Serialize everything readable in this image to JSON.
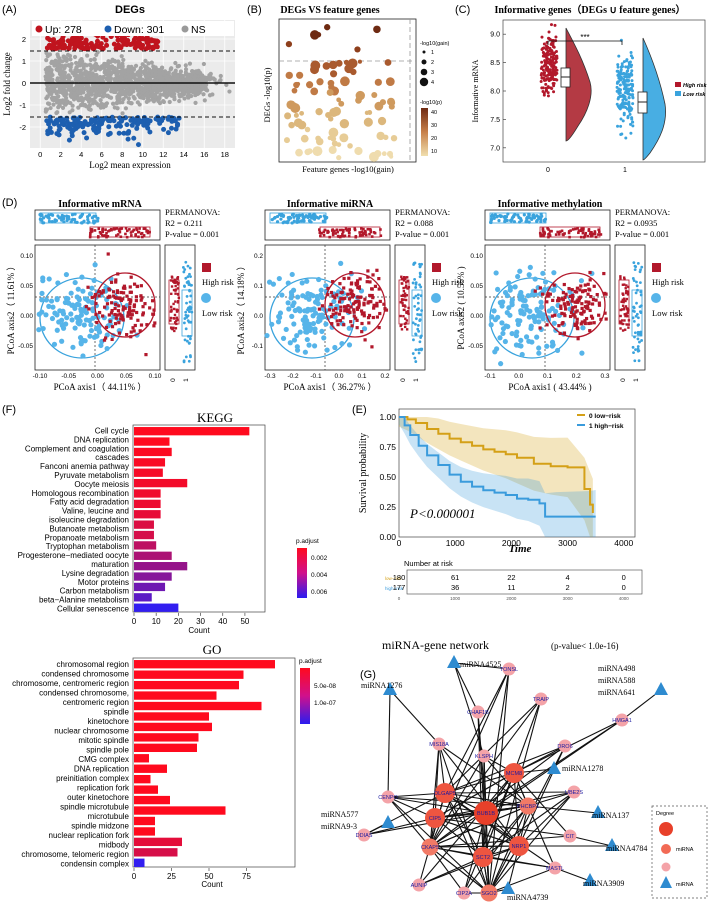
{
  "figure": {
    "panel_labels": [
      "(A)",
      "(B)",
      "(C)",
      "(D)",
      "(E)",
      "(F)",
      "(G)"
    ]
  },
  "colors": {
    "up": "#c0141e",
    "down": "#1d5fb0",
    "ns": "#9a9a9a",
    "high_risk": "#b2182b",
    "low_risk": "#3aa3dd",
    "km_low": "#d4a017",
    "km_high": "#3a9bdc",
    "mirna": "#2e8bd0",
    "gene_big": "#e8402a",
    "gene_mid": "#f26a55",
    "gene_small": "#f4a3a8"
  },
  "chart_data": [
    {
      "id": "A",
      "type": "scatter",
      "title": "DEGs",
      "xlabel": "Log2 mean expression",
      "ylabel": "Log2 fold change",
      "xticks": [
        "0",
        "2",
        "4",
        "6",
        "8",
        "10",
        "12",
        "14",
        "16",
        "18"
      ],
      "yticks": [
        "2",
        "1",
        "0",
        "-1",
        "-2"
      ],
      "legend": [
        {
          "label": "Up: 278",
          "color": "#c0141e"
        },
        {
          "label": "Down: 301",
          "color": "#1d5fb0"
        },
        {
          "label": "NS",
          "color": "#9a9a9a"
        }
      ],
      "up_count": 278,
      "down_count": 301,
      "thresholds": [
        1.5,
        -1.5
      ]
    },
    {
      "id": "B",
      "type": "scatter",
      "title": "DEGs VS feature genes",
      "xlabel": "Feature genes  -log10(gain)",
      "ylabel": "DEGs -log10(p)",
      "legend_size_title": "-log10(gain)",
      "legend_size_labels": [
        "1",
        "2",
        "3",
        "4"
      ],
      "legend_color_title": "-log10(p)",
      "legend_color_labels": [
        "40",
        "30",
        "20",
        "10"
      ]
    },
    {
      "id": "C",
      "type": "violin",
      "title": "Informative genes（DEGs ∪ feature genes）",
      "ylabel": "Informative mRNA",
      "categories": [
        "0",
        "1"
      ],
      "yticks": [
        "9.0",
        "8.5",
        "8.0",
        "7.5",
        "7.0"
      ],
      "medians": [
        8.45,
        8.05
      ],
      "significance": "***",
      "legend": [
        {
          "label": "High risk",
          "color": "#b2182b"
        },
        {
          "label": "Low risk",
          "color": "#3aa3dd"
        }
      ]
    },
    {
      "id": "D1",
      "type": "scatter",
      "title": "Informative mRNA",
      "xlabel": "PCoA axis1（ 44.11% ）",
      "ylabel": "PCoA axis2（ 11.61% ）",
      "xticks": [
        "-0.10",
        "-0.05",
        "0.00",
        "0.05",
        "0.10"
      ],
      "yticks": [
        "0.10",
        "0.05",
        "0.00",
        "-0.05"
      ],
      "stats": [
        "PERMANOVA:",
        "R2 =  0.211",
        "P-value =  0.001"
      ],
      "legend": [
        "High risk",
        "Low risk"
      ],
      "box_ticks": [
        "0",
        "1"
      ]
    },
    {
      "id": "D2",
      "type": "scatter",
      "title": "Informative miRNA",
      "xlabel": "PCoA axis1（ 36.27% ）",
      "ylabel": "PCoA axis2（ 14.18% ）",
      "xticks": [
        "-0.3",
        "-0.2",
        "-0.1",
        "0.0",
        "0.1",
        "0.2"
      ],
      "yticks": [
        "0.2",
        "0.1",
        "0.0",
        "-0.1"
      ],
      "stats": [
        "PERMANOVA:",
        "R2 =  0.088",
        "P-value =  0.001"
      ],
      "legend": [
        "High risk",
        "Low risk"
      ],
      "box_ticks": [
        "0",
        "1"
      ]
    },
    {
      "id": "D3",
      "type": "scatter",
      "title": "Informative methylation",
      "xlabel": "PCoA axis1 ( 43.44% )",
      "ylabel": "PCoA axis2 ( 10.55% )",
      "xticks": [
        "-0.1",
        "0.0",
        "0.1",
        "0.2",
        "0.3"
      ],
      "yticks": [
        "0.10",
        "0.05",
        "0.00",
        "-0.05"
      ],
      "stats": [
        "PERMANOVA:",
        "R2 =  0.0935",
        "P-value =  0.001"
      ],
      "legend": [
        "High risk",
        "Low risk"
      ],
      "box_ticks": [
        "0",
        "1"
      ]
    },
    {
      "id": "F1",
      "type": "bar",
      "orientation": "horizontal",
      "title": "KEGG",
      "xlabel": "Count",
      "xticks": [
        "0",
        "10",
        "20",
        "30",
        "40",
        "50"
      ],
      "xlim": [
        0,
        55
      ],
      "categories": [
        "Cell cycle",
        "DNA replication",
        "Complement and coagulation",
        "cascades",
        "Fanconi anemia pathway",
        "Pyruvate metabolism",
        "Oocyte meiosis",
        "Homologous recombination",
        "Fatty acid degradation",
        "Valine, leucine and",
        "isoleucine degradation",
        "Butanoate metabolism",
        "Propanoate metabolism",
        "Tryptophan metabolism",
        "Progesterone−mediated oocyte",
        "maturation",
        "Lysine degradation",
        "Motor proteins",
        "Carbon metabolism",
        "beta−Alanine metabolism",
        "Cellular senescence"
      ],
      "bars": [
        {
          "label": "Cell cycle",
          "value": 52,
          "padj": 0.0
        },
        {
          "label": "DNA replication",
          "value": 16,
          "padj": 0.0
        },
        {
          "label": "Complement and coagulation cascades",
          "value": 17,
          "padj": 0.0001
        },
        {
          "label": "Fanconi anemia pathway",
          "value": 14,
          "padj": 0.0002
        },
        {
          "label": "Pyruvate metabolism",
          "value": 13,
          "padj": 0.0003
        },
        {
          "label": "Oocyte meiosis",
          "value": 24,
          "padj": 0.0004
        },
        {
          "label": "Homologous recombination",
          "value": 12,
          "padj": 0.0005
        },
        {
          "label": "Fatty acid degradation",
          "value": 12,
          "padj": 0.0006
        },
        {
          "label": "Valine, leucine and isoleucine degradation",
          "value": 12,
          "padj": 0.0008
        },
        {
          "label": "Butanoate metabolism",
          "value": 9,
          "padj": 0.0012
        },
        {
          "label": "Propanoate metabolism",
          "value": 9,
          "padj": 0.0014
        },
        {
          "label": "Tryptophan metabolism",
          "value": 10,
          "padj": 0.0022
        },
        {
          "label": "Progesterone−mediated oocyte maturation",
          "value": 17,
          "padj": 0.0028
        },
        {
          "label": "Lysine degradation",
          "value": 24,
          "padj": 0.0035
        },
        {
          "label": "Motor proteins",
          "value": 17,
          "padj": 0.004
        },
        {
          "label": "Carbon metabolism",
          "value": 14,
          "padj": 0.0048
        },
        {
          "label": "beta−Alanine metabolism",
          "value": 8,
          "padj": 0.0054
        },
        {
          "label": "Cellular senescence",
          "value": 20,
          "padj": 0.0068
        }
      ],
      "colorbar_title": "p.adjust",
      "colorbar_labels": [
        "0.002",
        "0.004",
        "0.006"
      ]
    },
    {
      "id": "F2",
      "type": "bar",
      "orientation": "horizontal",
      "title": "GO",
      "xlabel": "Count",
      "xticks": [
        "0",
        "25",
        "50",
        "75"
      ],
      "xlim": [
        0,
        100
      ],
      "categories": [
        "chromosomal region",
        "condensed chromosome",
        "chromosome, centromeric region",
        "condensed chromosome,",
        "centromeric region",
        "spindle",
        "kinetochore",
        "nuclear chromosome",
        "mitotic spindle",
        "spindle pole",
        "CMG complex",
        "DNA replication",
        "preinitiation complex",
        "replication fork",
        "outer kinetochore",
        "spindle microtubule",
        "microtubule",
        "spindle midzone",
        "nuclear replication fork",
        "midbody",
        "chromosome, telomeric region",
        "condensin complex"
      ],
      "bars": [
        {
          "label": "chromosomal region",
          "value": 94,
          "padj": 0.0
        },
        {
          "label": "condensed chromosome",
          "value": 73,
          "padj": 0.0
        },
        {
          "label": "chromosome, centromeric region",
          "value": 70,
          "padj": 0.0
        },
        {
          "label": "condensed chromosome, centromeric region",
          "value": 55,
          "padj": 0.0
        },
        {
          "label": "spindle",
          "value": 85,
          "padj": 0.0
        },
        {
          "label": "kinetochore",
          "value": 50,
          "padj": 0.0
        },
        {
          "label": "nuclear chromosome",
          "value": 52,
          "padj": 0.0
        },
        {
          "label": "mitotic spindle",
          "value": 43,
          "padj": 0.0
        },
        {
          "label": "spindle pole",
          "value": 42,
          "padj": 0.0
        },
        {
          "label": "CMG complex",
          "value": 10,
          "padj": 0.0
        },
        {
          "label": "DNA replication preinitiation complex",
          "value": 22,
          "padj": 0.0
        },
        {
          "label": "replication fork",
          "value": 11,
          "padj": 0.0
        },
        {
          "label": "outer kinetochore",
          "value": 16,
          "padj": 0.0
        },
        {
          "label": "spindle microtubule",
          "value": 24,
          "padj": 0.0
        },
        {
          "label": "microtubule",
          "value": 61,
          "padj": 0.0
        },
        {
          "label": "spindle midzone",
          "value": 14,
          "padj": 0.0
        },
        {
          "label": "nuclear replication fork",
          "value": 14,
          "padj": 0.0
        },
        {
          "label": "midbody",
          "value": 32,
          "padj": 2e-08
        },
        {
          "label": "chromosome, telomeric region",
          "value": 29,
          "padj": 3e-08
        },
        {
          "label": "condensin complex",
          "value": 7,
          "padj": 1.5e-07
        }
      ],
      "colorbar_title": "p.adjust",
      "colorbar_labels": [
        "5.0e-08",
        "1.0e-07"
      ]
    },
    {
      "id": "E",
      "type": "line",
      "subtype": "kaplan-meier",
      "xlabel": "Time",
      "ylabel": "Survival probability",
      "xticks": [
        "0",
        "1000",
        "2000",
        "3000",
        "4000"
      ],
      "yticks": [
        "1.00",
        "0.75",
        "0.50",
        "0.25",
        "0.00"
      ],
      "xlim": [
        0,
        4200
      ],
      "ylim": [
        0,
        1
      ],
      "pvalue_label": "P<0.000001",
      "series": [
        {
          "name": "0 low−risk",
          "color": "#d4a017",
          "x": [
            0,
            150,
            300,
            500,
            700,
            900,
            1100,
            1300,
            1500,
            1700,
            1900,
            2100,
            2400,
            2700,
            3000,
            3300,
            3400,
            3450
          ],
          "y": [
            1.0,
            0.98,
            0.95,
            0.9,
            0.86,
            0.82,
            0.79,
            0.76,
            0.73,
            0.71,
            0.69,
            0.66,
            0.61,
            0.59,
            0.58,
            0.4,
            0.27,
            0.2
          ]
        },
        {
          "name": "1 high−risk",
          "color": "#3a9bdc",
          "x": [
            0,
            100,
            200,
            350,
            500,
            700,
            900,
            1100,
            1300,
            1500,
            1700,
            1900,
            2100,
            2300,
            2500,
            2600,
            2800,
            3400,
            3500
          ],
          "y": [
            1.0,
            0.93,
            0.85,
            0.76,
            0.68,
            0.6,
            0.52,
            0.46,
            0.42,
            0.39,
            0.37,
            0.35,
            0.32,
            0.31,
            0.28,
            0.17,
            0.17,
            0.17,
            0.17
          ]
        }
      ],
      "risk_table": {
        "title": "Number at risk",
        "rows": [
          {
            "label": "low−risk",
            "values": [
              "180",
              "61",
              "22",
              "4",
              "0"
            ]
          },
          {
            "label": "high−risk",
            "values": [
              "177",
              "36",
              "11",
              "2",
              "0"
            ]
          }
        ],
        "xticks": [
          "0",
          "1000",
          "2000",
          "3000",
          "4000"
        ]
      }
    },
    {
      "id": "G",
      "type": "network",
      "title": "miRNA-gene network",
      "subtitle": "(p-value< 1.0e-16)",
      "legend_title": "Degree",
      "legend_items": [
        "miRNA",
        "miRNA"
      ],
      "mirna_labels": [
        "miRNA4525",
        "miRNA1276",
        "miRNA498",
        "miRNA588",
        "miRNA641",
        "miRNA1278",
        "miRNA577",
        "miRNA9-3",
        "miRNA137",
        "miRNA4784",
        "miRNA3909",
        "miRNA4739"
      ],
      "gene_labels": [
        "TONSL",
        "TRAIP",
        "CHAF1B",
        "HMGA1",
        "MIS18A",
        "KLSPH",
        "DRO6",
        "MCM8",
        "DLGAP5",
        "CENPO",
        "UBE2S",
        "BUB1B",
        "PHCBP1",
        "CIP5",
        "CIT",
        "DDIAS",
        "CKAP5",
        "NRP1",
        "AUNIP",
        "SCT2",
        "MASTL",
        "CIP2A",
        "SGO2"
      ]
    }
  ]
}
